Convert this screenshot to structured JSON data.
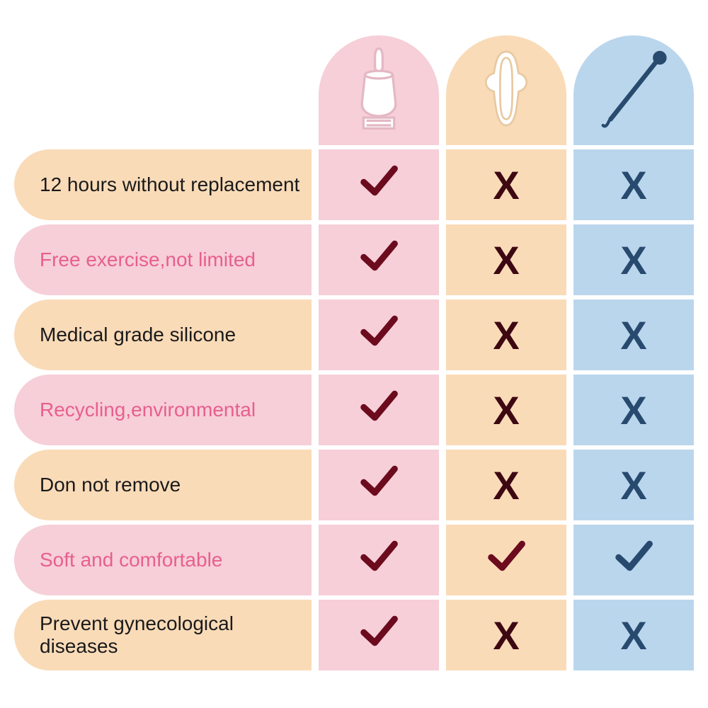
{
  "colors": {
    "col1_bg": "#f6cfd8",
    "col2_bg": "#fadbb8",
    "col3_bg": "#bad6ed",
    "row_odd_label_bg": "#fadbb8",
    "row_even_label_bg": "#f6cfd8",
    "text_black": "#1a1a1a",
    "text_pink": "#e85f8f",
    "check_maroon": "#6c0a1e",
    "cross_maroon": "#3d0812",
    "cross_navy": "#284a6e",
    "check_navy": "#284a6e",
    "cup_outline": "#e4b8c4",
    "pad_outline": "#e8c9a0",
    "tampon_color": "#284a6e"
  },
  "columns": [
    {
      "icon": "cup",
      "bg_key": "col1_bg"
    },
    {
      "icon": "pad",
      "bg_key": "col2_bg"
    },
    {
      "icon": "tampon",
      "bg_key": "col3_bg"
    }
  ],
  "rows": [
    {
      "label": "12 hours without replacement",
      "text_color_key": "text_black",
      "label_bg_key": "row_odd_label_bg",
      "vals": [
        "check",
        "cross",
        "cross"
      ]
    },
    {
      "label": "Free exercise,not limited",
      "text_color_key": "text_pink",
      "label_bg_key": "row_even_label_bg",
      "vals": [
        "check",
        "cross",
        "cross"
      ]
    },
    {
      "label": "Medical grade silicone",
      "text_color_key": "text_black",
      "label_bg_key": "row_odd_label_bg",
      "vals": [
        "check",
        "cross",
        "cross"
      ]
    },
    {
      "label": "Recycling,environmental",
      "text_color_key": "text_pink",
      "label_bg_key": "row_even_label_bg",
      "vals": [
        "check",
        "cross",
        "cross"
      ]
    },
    {
      "label": "Don not remove",
      "text_color_key": "text_black",
      "label_bg_key": "row_odd_label_bg",
      "vals": [
        "check",
        "cross",
        "cross"
      ]
    },
    {
      "label": "Soft and comfortable",
      "text_color_key": "text_pink",
      "label_bg_key": "row_even_label_bg",
      "vals": [
        "check",
        "check",
        "check"
      ]
    },
    {
      "label": "Prevent gynecological diseases",
      "text_color_key": "text_black",
      "label_bg_key": "row_odd_label_bg",
      "vals": [
        "check",
        "cross",
        "cross"
      ]
    }
  ],
  "label_fontsize": 28,
  "mark_fontsize": 56
}
